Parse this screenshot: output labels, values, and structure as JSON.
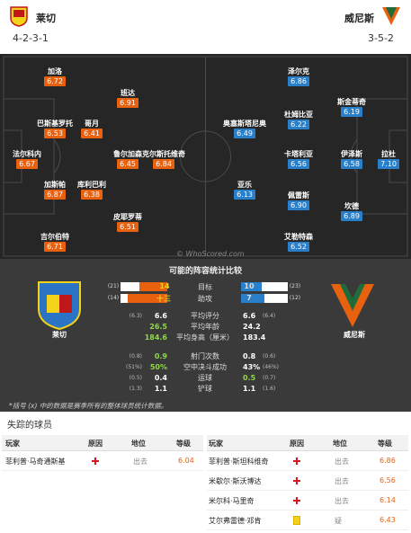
{
  "home": {
    "name": "莱切",
    "formation": "4-2-3-1",
    "rating_color": "#e8610f",
    "players": [
      {
        "name": "法尔科内",
        "rating": "6.67"
      },
      {
        "name": "加洛",
        "rating": "6.72"
      },
      {
        "name": "巴斯基罗托",
        "rating": "6.53"
      },
      {
        "name": "加斯帕",
        "rating": "6.87"
      },
      {
        "name": "吉尔伯特",
        "rating": "6.71"
      },
      {
        "name": "哥月",
        "rating": "6.41"
      },
      {
        "name": "库利巴利",
        "rating": "6.38"
      },
      {
        "name": "班达",
        "rating": "6.91"
      },
      {
        "name": "鲁尔加森",
        "rating": "6.45"
      },
      {
        "name": "皮耶罗蒂",
        "rating": "6.51"
      },
      {
        "name": "克尔斯托维奇",
        "rating": "6.84"
      }
    ]
  },
  "away": {
    "name": "威尼斯",
    "formation": "3-5-2",
    "rating_color": "#2a7fca",
    "players": [
      {
        "name": "拉杜",
        "rating": "7.10"
      },
      {
        "name": "斯金蒂奇",
        "rating": "6.19"
      },
      {
        "name": "伊泽斯",
        "rating": "6.58"
      },
      {
        "name": "坎德",
        "rating": "6.89"
      },
      {
        "name": "泽尔克",
        "rating": "6.86"
      },
      {
        "name": "杜姆比亚",
        "rating": "6.22"
      },
      {
        "name": "卡塔利亚",
        "rating": "6.56"
      },
      {
        "name": "佩雷斯",
        "rating": "6.90"
      },
      {
        "name": "艾勒特森",
        "rating": "6.52"
      },
      {
        "name": "奥塞斯塔尼奥",
        "rating": "6.49"
      },
      {
        "name": "亚乐",
        "rating": "6.13"
      }
    ]
  },
  "pitch": {
    "watermark": "© WhoScored.com"
  },
  "comparison": {
    "title": "可能的阵容统计比较",
    "bars": [
      {
        "label": "目标",
        "home": "14",
        "home_total": "(21)",
        "away": "10",
        "away_total": "(23)",
        "home_frac": 0.6,
        "away_frac": 0.45
      },
      {
        "label": "助攻",
        "home": "十三",
        "home_total": "(14)",
        "away": "7",
        "away_total": "(12)",
        "home_frac": 0.85,
        "away_frac": 0.5
      }
    ],
    "stats": [
      {
        "label": "平均评分",
        "home": "6.6",
        "home_sub": "(6.3)",
        "away": "6.6",
        "away_sub": "(6.4)",
        "home_green": false
      },
      {
        "label": "平均年龄",
        "home": "26.5",
        "home_sub": "",
        "away": "24.2",
        "away_sub": "",
        "home_green": true
      },
      {
        "label": "平均身高（厘米）",
        "home": "184.6",
        "home_sub": "",
        "away": "183.4",
        "away_sub": "",
        "home_green": true
      },
      {
        "label": "射门次数",
        "home": "0.9",
        "home_sub": "(0.8)",
        "away": "0.8",
        "away_sub": "(0.6)",
        "home_green": true
      },
      {
        "label": "空中决斗成功",
        "home": "50%",
        "home_sub": "(51%)",
        "away": "43%",
        "away_sub": "(46%)",
        "home_green": true
      },
      {
        "label": "运球",
        "home": "0.4",
        "home_sub": "(0.5)",
        "away": "0.5",
        "away_sub": "(0.7)",
        "home_green": false
      },
      {
        "label": "铲球",
        "home": "1.1",
        "home_sub": "(1.3)",
        "away": "1.1",
        "away_sub": "(1.6)",
        "home_green": false
      }
    ],
    "footnote": "*括号 (x) 中的数据是赛季所有的整体球员统计数据。"
  },
  "missing": {
    "title": "失踪的球员",
    "headers": {
      "player": "玩家",
      "reason": "原因",
      "position": "地位",
      "rating": "等级"
    },
    "home": [
      {
        "name": "菲利普·马奇通斯基",
        "position": "出去",
        "rating": "6.04",
        "reason": "injury"
      }
    ],
    "away": [
      {
        "name": "菲利普·斯坦科维奇",
        "position": "出去",
        "rating": "6.86",
        "reason": "injury"
      },
      {
        "name": "米歇尔·斯沃博达",
        "position": "出去",
        "rating": "6.56",
        "reason": "injury"
      },
      {
        "name": "米尔科·马里奇",
        "position": "出去",
        "rating": "6.14",
        "reason": "injury"
      },
      {
        "name": "艾尔弗雷德·邓肯",
        "position": "疑",
        "rating": "6.43",
        "reason": "card"
      }
    ]
  }
}
